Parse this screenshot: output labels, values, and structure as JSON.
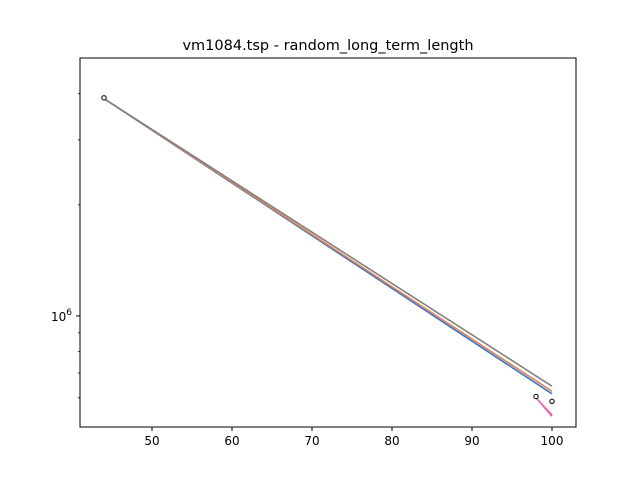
{
  "chart_data": {
    "type": "line",
    "title": "vm1084.tsp - random_long_term_length",
    "xlabel": "",
    "ylabel": "",
    "x_scale": "linear",
    "y_scale": "log",
    "xlim": [
      41.0,
      103.0
    ],
    "ylim": [
      500000,
      5000000
    ],
    "x_ticks": [
      50,
      60,
      70,
      80,
      90,
      100
    ],
    "x_tick_labels": [
      "50",
      "60",
      "70",
      "80",
      "90",
      "100"
    ],
    "y_ticks": [
      1000000
    ],
    "y_tick_labels": [
      "10^6"
    ],
    "grid": false,
    "legend": "none",
    "series": [
      {
        "color": "#4472c4",
        "x": [
          44,
          100
        ],
        "y": [
          3880000,
          615000
        ]
      },
      {
        "color": "#dd8452",
        "x": [
          44,
          100
        ],
        "y": [
          3880000,
          625000
        ]
      },
      {
        "color": "#808080",
        "x": [
          44,
          100
        ],
        "y": [
          3880000,
          645000
        ]
      },
      {
        "color": "#e8437f",
        "x": [
          98,
          100
        ],
        "y": [
          600000,
          535000
        ]
      },
      {
        "color": "#e377c2",
        "x": [
          98,
          100
        ],
        "y": [
          600000,
          540000
        ]
      }
    ],
    "markers": [
      {
        "x": 44,
        "y": 3900000
      },
      {
        "x": 98,
        "y": 605000
      },
      {
        "x": 100,
        "y": 587000
      }
    ]
  }
}
